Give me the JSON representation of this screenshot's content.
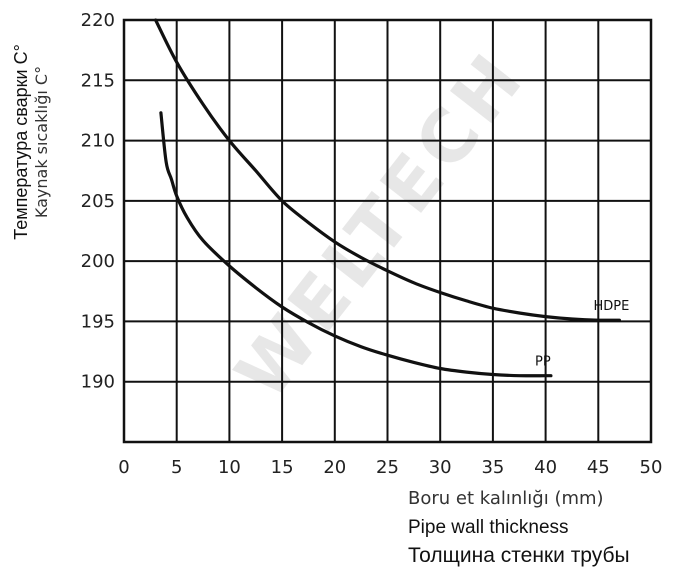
{
  "chart_data": {
    "type": "line",
    "title": "",
    "watermark": "WELTECH",
    "xlabel": [
      "Boru et kalınlığı (mm)",
      "Pipe wall thickness",
      "Толщина стенки трубы"
    ],
    "ylabel": [
      "Температура сварки C°",
      "Kaynak sıcaklığı C°"
    ],
    "xlim": [
      0,
      50
    ],
    "ylim": [
      185,
      220
    ],
    "xticks": [
      0,
      5,
      10,
      15,
      20,
      25,
      30,
      35,
      40,
      45,
      50
    ],
    "yticks": [
      190,
      195,
      200,
      205,
      210,
      215,
      220
    ],
    "grid": true,
    "series": [
      {
        "name": "HDPE",
        "x": [
          3,
          5,
          7.5,
          10,
          12.5,
          15,
          17.5,
          20,
          22.5,
          25,
          27.5,
          30,
          32.5,
          35,
          37.5,
          40,
          42.5,
          45,
          47
        ],
        "y": [
          220,
          216.5,
          213,
          210,
          207.5,
          205,
          203.2,
          201.6,
          200.3,
          199.2,
          198.2,
          197.4,
          196.7,
          196.1,
          195.7,
          195.4,
          195.2,
          195.1,
          195.1
        ]
      },
      {
        "name": "PP",
        "x": [
          3.5,
          4,
          4.5,
          5,
          6,
          7.5,
          10,
          12.5,
          15,
          17.5,
          20,
          22.5,
          25,
          27.5,
          30,
          32.5,
          35,
          37.5,
          40,
          40.5
        ],
        "y": [
          212.3,
          208.2,
          206.8,
          205.4,
          203.6,
          201.7,
          199.6,
          197.8,
          196.2,
          194.9,
          193.8,
          192.9,
          192.2,
          191.6,
          191.1,
          190.8,
          190.6,
          190.5,
          190.5,
          190.5
        ]
      }
    ]
  }
}
